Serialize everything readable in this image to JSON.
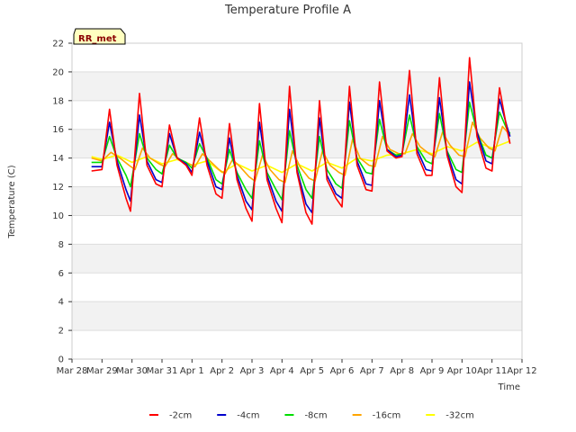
{
  "chart_data": {
    "type": "line",
    "title": "Temperature Profile A",
    "xlabel": "Time",
    "ylabel": "Temperature (C)",
    "badge": "RR_met",
    "xlim": [
      0,
      15
    ],
    "ylim": [
      0,
      22
    ],
    "x_ticks": [
      "Mar 28",
      "Mar 29",
      "Mar 30",
      "Mar 31",
      "Apr 1",
      "Apr 2",
      "Apr 3",
      "Apr 4",
      "Apr 5",
      "Apr 6",
      "Apr 7",
      "Apr 8",
      "Apr 9",
      "Apr 10",
      "Apr 11",
      "Apr 12"
    ],
    "y_ticks": [
      0,
      2,
      4,
      6,
      8,
      10,
      12,
      14,
      16,
      18,
      20,
      22
    ],
    "grid": true,
    "legend_position": "bottom",
    "series": [
      {
        "name": "-2cm",
        "color": "#ff0000",
        "points": [
          [
            0.65,
            13.1
          ],
          [
            1.0,
            13.2
          ],
          [
            1.25,
            17.4
          ],
          [
            1.5,
            13.5
          ],
          [
            1.8,
            11.2
          ],
          [
            1.95,
            10.3
          ],
          [
            2.25,
            18.5
          ],
          [
            2.5,
            13.5
          ],
          [
            2.8,
            12.2
          ],
          [
            3.0,
            12.0
          ],
          [
            3.25,
            16.3
          ],
          [
            3.5,
            14.0
          ],
          [
            3.8,
            13.5
          ],
          [
            4.0,
            12.8
          ],
          [
            4.25,
            16.8
          ],
          [
            4.5,
            13.5
          ],
          [
            4.8,
            11.5
          ],
          [
            5.0,
            11.2
          ],
          [
            5.25,
            16.4
          ],
          [
            5.5,
            12.5
          ],
          [
            5.8,
            10.5
          ],
          [
            6.0,
            9.6
          ],
          [
            6.25,
            17.8
          ],
          [
            6.5,
            12.5
          ],
          [
            6.8,
            10.5
          ],
          [
            7.0,
            9.5
          ],
          [
            7.25,
            19.0
          ],
          [
            7.5,
            13.0
          ],
          [
            7.8,
            10.2
          ],
          [
            8.0,
            9.4
          ],
          [
            8.25,
            18.0
          ],
          [
            8.5,
            12.5
          ],
          [
            8.8,
            11.2
          ],
          [
            9.0,
            10.6
          ],
          [
            9.25,
            19.0
          ],
          [
            9.5,
            13.5
          ],
          [
            9.8,
            11.8
          ],
          [
            10.0,
            11.7
          ],
          [
            10.25,
            19.3
          ],
          [
            10.5,
            14.5
          ],
          [
            10.8,
            14.0
          ],
          [
            11.0,
            14.1
          ],
          [
            11.25,
            20.1
          ],
          [
            11.5,
            14.3
          ],
          [
            11.8,
            12.8
          ],
          [
            12.0,
            12.8
          ],
          [
            12.25,
            19.6
          ],
          [
            12.5,
            14.2
          ],
          [
            12.8,
            12.0
          ],
          [
            13.0,
            11.6
          ],
          [
            13.25,
            21.0
          ],
          [
            13.5,
            15.5
          ],
          [
            13.8,
            13.3
          ],
          [
            14.0,
            13.1
          ],
          [
            14.25,
            18.9
          ],
          [
            14.5,
            16.0
          ],
          [
            14.6,
            15.0
          ]
        ]
      },
      {
        "name": "-4cm",
        "color": "#0000cc",
        "points": [
          [
            0.65,
            13.4
          ],
          [
            1.0,
            13.4
          ],
          [
            1.25,
            16.5
          ],
          [
            1.5,
            13.8
          ],
          [
            1.8,
            11.8
          ],
          [
            1.95,
            11.0
          ],
          [
            2.25,
            17.0
          ],
          [
            2.5,
            13.8
          ],
          [
            2.8,
            12.5
          ],
          [
            3.0,
            12.3
          ],
          [
            3.25,
            15.7
          ],
          [
            3.5,
            14.0
          ],
          [
            3.8,
            13.6
          ],
          [
            4.0,
            13.0
          ],
          [
            4.25,
            15.8
          ],
          [
            4.5,
            13.8
          ],
          [
            4.8,
            12.0
          ],
          [
            5.0,
            11.8
          ],
          [
            5.25,
            15.4
          ],
          [
            5.5,
            12.8
          ],
          [
            5.8,
            11.0
          ],
          [
            6.0,
            10.4
          ],
          [
            6.25,
            16.5
          ],
          [
            6.5,
            12.8
          ],
          [
            6.8,
            11.0
          ],
          [
            7.0,
            10.3
          ],
          [
            7.25,
            17.4
          ],
          [
            7.5,
            13.2
          ],
          [
            7.8,
            10.8
          ],
          [
            8.0,
            10.2
          ],
          [
            8.25,
            16.8
          ],
          [
            8.5,
            12.8
          ],
          [
            8.8,
            11.5
          ],
          [
            9.0,
            11.2
          ],
          [
            9.25,
            17.9
          ],
          [
            9.5,
            13.8
          ],
          [
            9.8,
            12.2
          ],
          [
            10.0,
            12.1
          ],
          [
            10.25,
            18.0
          ],
          [
            10.5,
            14.6
          ],
          [
            10.8,
            14.1
          ],
          [
            11.0,
            14.2
          ],
          [
            11.25,
            18.4
          ],
          [
            11.5,
            14.6
          ],
          [
            11.8,
            13.2
          ],
          [
            12.0,
            13.1
          ],
          [
            12.25,
            18.2
          ],
          [
            12.5,
            14.4
          ],
          [
            12.8,
            12.5
          ],
          [
            13.0,
            12.2
          ],
          [
            13.25,
            19.3
          ],
          [
            13.5,
            15.8
          ],
          [
            13.8,
            13.8
          ],
          [
            14.0,
            13.6
          ],
          [
            14.25,
            18.1
          ],
          [
            14.5,
            16.2
          ],
          [
            14.6,
            15.5
          ]
        ]
      },
      {
        "name": "-8cm",
        "color": "#00dd00",
        "points": [
          [
            0.65,
            13.7
          ],
          [
            1.0,
            13.7
          ],
          [
            1.25,
            15.5
          ],
          [
            1.5,
            14.0
          ],
          [
            1.8,
            12.8
          ],
          [
            1.95,
            12.0
          ],
          [
            2.25,
            15.7
          ],
          [
            2.5,
            14.0
          ],
          [
            2.8,
            13.2
          ],
          [
            3.0,
            12.9
          ],
          [
            3.25,
            14.9
          ],
          [
            3.5,
            14.0
          ],
          [
            3.8,
            13.7
          ],
          [
            4.0,
            13.3
          ],
          [
            4.25,
            15.0
          ],
          [
            4.5,
            14.0
          ],
          [
            4.8,
            12.5
          ],
          [
            5.0,
            12.2
          ],
          [
            5.25,
            14.6
          ],
          [
            5.5,
            13.0
          ],
          [
            5.8,
            11.8
          ],
          [
            6.0,
            11.2
          ],
          [
            6.25,
            15.2
          ],
          [
            6.5,
            13.0
          ],
          [
            6.8,
            11.8
          ],
          [
            7.0,
            11.1
          ],
          [
            7.25,
            15.9
          ],
          [
            7.5,
            13.5
          ],
          [
            7.8,
            11.8
          ],
          [
            8.0,
            11.2
          ],
          [
            8.25,
            15.5
          ],
          [
            8.5,
            13.2
          ],
          [
            8.8,
            12.2
          ],
          [
            9.0,
            11.9
          ],
          [
            9.25,
            16.6
          ],
          [
            9.5,
            14.0
          ],
          [
            9.8,
            13.0
          ],
          [
            10.0,
            12.9
          ],
          [
            10.25,
            16.7
          ],
          [
            10.5,
            14.6
          ],
          [
            10.8,
            14.2
          ],
          [
            11.0,
            14.3
          ],
          [
            11.25,
            17.0
          ],
          [
            11.5,
            14.8
          ],
          [
            11.8,
            13.8
          ],
          [
            12.0,
            13.6
          ],
          [
            12.25,
            17.1
          ],
          [
            12.5,
            14.5
          ],
          [
            12.8,
            13.2
          ],
          [
            13.0,
            13.0
          ],
          [
            13.25,
            17.9
          ],
          [
            13.5,
            15.8
          ],
          [
            13.8,
            14.2
          ],
          [
            14.0,
            14.0
          ],
          [
            14.25,
            17.2
          ],
          [
            14.5,
            16.0
          ],
          [
            14.6,
            15.7
          ]
        ]
      },
      {
        "name": "-16cm",
        "color": "#ffa500",
        "points": [
          [
            0.65,
            14.0
          ],
          [
            1.0,
            13.8
          ],
          [
            1.3,
            14.4
          ],
          [
            1.6,
            14.0
          ],
          [
            1.9,
            13.5
          ],
          [
            2.1,
            13.2
          ],
          [
            2.35,
            14.7
          ],
          [
            2.6,
            14.0
          ],
          [
            2.9,
            13.6
          ],
          [
            3.1,
            13.4
          ],
          [
            3.35,
            14.3
          ],
          [
            3.6,
            13.9
          ],
          [
            3.9,
            13.6
          ],
          [
            4.1,
            13.4
          ],
          [
            4.35,
            14.3
          ],
          [
            4.6,
            13.8
          ],
          [
            4.9,
            13.2
          ],
          [
            5.1,
            12.9
          ],
          [
            5.35,
            13.9
          ],
          [
            5.6,
            13.4
          ],
          [
            5.9,
            12.7
          ],
          [
            6.1,
            12.4
          ],
          [
            6.35,
            14.2
          ],
          [
            6.6,
            13.2
          ],
          [
            6.9,
            12.5
          ],
          [
            7.1,
            12.3
          ],
          [
            7.35,
            14.5
          ],
          [
            7.6,
            13.4
          ],
          [
            7.9,
            12.6
          ],
          [
            8.1,
            12.4
          ],
          [
            8.35,
            14.5
          ],
          [
            8.6,
            13.5
          ],
          [
            8.9,
            13.0
          ],
          [
            9.1,
            12.8
          ],
          [
            9.35,
            15.3
          ],
          [
            9.6,
            14.0
          ],
          [
            9.9,
            13.5
          ],
          [
            10.1,
            13.4
          ],
          [
            10.35,
            15.5
          ],
          [
            10.6,
            14.6
          ],
          [
            10.9,
            14.3
          ],
          [
            11.1,
            14.3
          ],
          [
            11.35,
            15.7
          ],
          [
            11.6,
            14.8
          ],
          [
            11.9,
            14.3
          ],
          [
            12.1,
            14.1
          ],
          [
            12.35,
            15.8
          ],
          [
            12.6,
            14.9
          ],
          [
            12.9,
            14.2
          ],
          [
            13.1,
            14.1
          ],
          [
            13.35,
            16.5
          ],
          [
            13.6,
            15.4
          ],
          [
            13.9,
            14.7
          ],
          [
            14.1,
            14.5
          ],
          [
            14.35,
            16.2
          ],
          [
            14.6,
            15.6
          ]
        ]
      },
      {
        "name": "-32cm",
        "color": "#ffff00",
        "points": [
          [
            0.65,
            14.1
          ],
          [
            1.0,
            13.9
          ],
          [
            1.5,
            14.2
          ],
          [
            2.0,
            13.7
          ],
          [
            2.5,
            14.1
          ],
          [
            3.0,
            13.6
          ],
          [
            3.5,
            13.9
          ],
          [
            4.0,
            13.5
          ],
          [
            4.5,
            13.8
          ],
          [
            5.0,
            13.0
          ],
          [
            5.5,
            13.6
          ],
          [
            6.0,
            13.1
          ],
          [
            6.5,
            13.5
          ],
          [
            7.0,
            13.0
          ],
          [
            7.5,
            13.6
          ],
          [
            8.0,
            13.1
          ],
          [
            8.5,
            13.7
          ],
          [
            9.0,
            13.3
          ],
          [
            9.5,
            14.0
          ],
          [
            10.0,
            13.8
          ],
          [
            10.5,
            14.2
          ],
          [
            11.0,
            14.3
          ],
          [
            11.5,
            14.6
          ],
          [
            12.0,
            14.3
          ],
          [
            12.5,
            14.8
          ],
          [
            13.0,
            14.5
          ],
          [
            13.5,
            15.1
          ],
          [
            14.0,
            14.7
          ],
          [
            14.5,
            15.1
          ],
          [
            14.6,
            15.2
          ]
        ]
      }
    ]
  }
}
